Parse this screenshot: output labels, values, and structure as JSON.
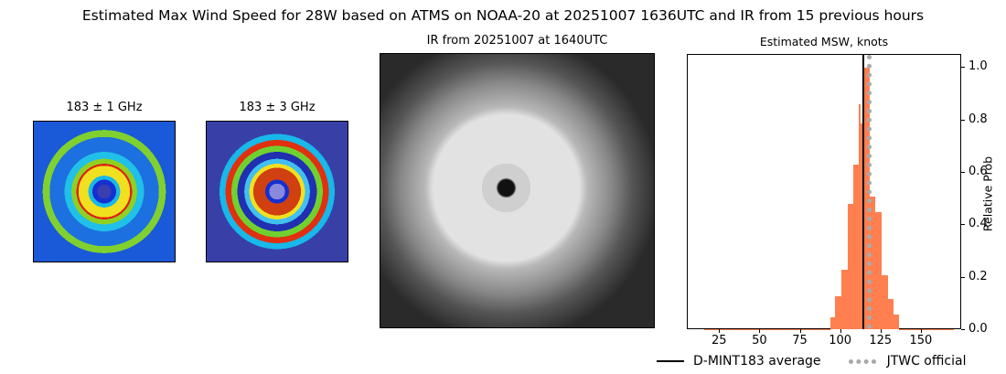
{
  "suptitle": "Estimated Max Wind Speed for 28W based on ATMS on NOAA-20 at 20251007 1636UTC and IR from 15 previous hours",
  "panels": {
    "mw1_title": "183 ± 1 GHz",
    "mw3_title": "183 ± 3 GHz",
    "ir_title": "IR from 20251007 at 1640UTC",
    "hist_title": "Estimated MSW, knots"
  },
  "legend": {
    "avg_label": "D-MINT183 average",
    "official_label": "JTWC official"
  },
  "colors": {
    "bar": "#ff7f50",
    "avg_line": "#000000",
    "official_line": "#a9a9a9"
  },
  "chart_data": {
    "type": "bar",
    "title": "Estimated MSW, knots",
    "xlabel": "",
    "ylabel": "Relative Prob",
    "xlim": [
      5,
      175
    ],
    "ylim": [
      0,
      1.05
    ],
    "xticks": [
      25,
      50,
      75,
      100,
      125,
      150
    ],
    "yticks": [
      0.0,
      0.2,
      0.4,
      0.6,
      0.8,
      1.0
    ],
    "bin_edges": [
      15,
      93.2,
      96.5,
      100.3,
      104.1,
      107.5,
      110.7,
      112.3,
      114,
      117.6,
      121.2,
      125,
      129.2,
      132.5,
      136,
      170
    ],
    "values": [
      0.003,
      0.05,
      0.13,
      0.23,
      0.48,
      0.63,
      0.86,
      0.79,
      1.0,
      0.51,
      0.45,
      0.21,
      0.12,
      0.06,
      0.003
    ],
    "vlines": [
      {
        "name": "D-MINT183 average",
        "x": 114,
        "style": "solid",
        "color": "#000000"
      },
      {
        "name": "JTWC official",
        "x": 117,
        "style": "dotted",
        "color": "#a9a9a9"
      }
    ],
    "legend_position": "bottom"
  }
}
